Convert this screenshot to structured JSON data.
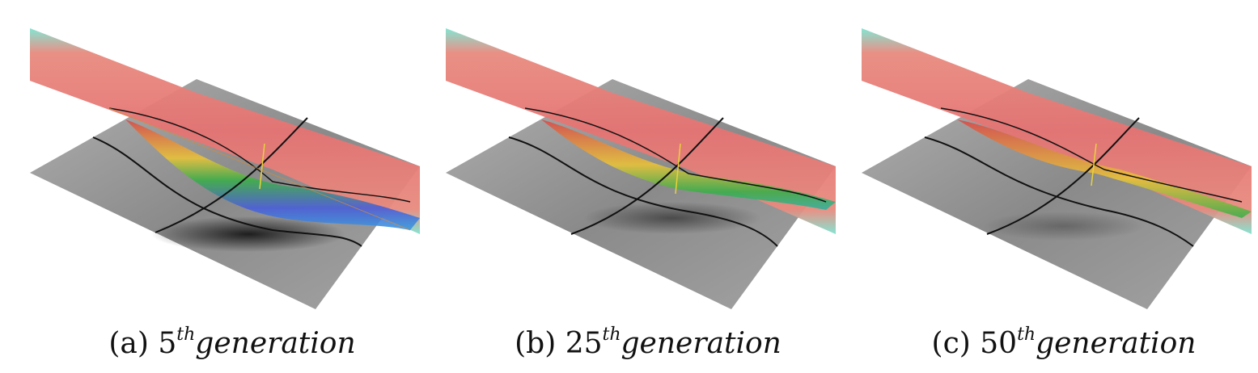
{
  "figure": {
    "panels": [
      {
        "id": "a",
        "label": "(a) 5",
        "superscript": "th",
        "suffix": "generation"
      },
      {
        "id": "b",
        "label": "(b) 25",
        "superscript": "th",
        "suffix": "generation"
      },
      {
        "id": "c",
        "label": "(c) 50",
        "superscript": "th",
        "suffix": "generation"
      }
    ],
    "colors": {
      "band_high": "#e57373",
      "band_low": "#4a5ed8",
      "band_edge": "#5fe0c8",
      "surface": "#8a8a8a",
      "curve": "#111111"
    }
  }
}
